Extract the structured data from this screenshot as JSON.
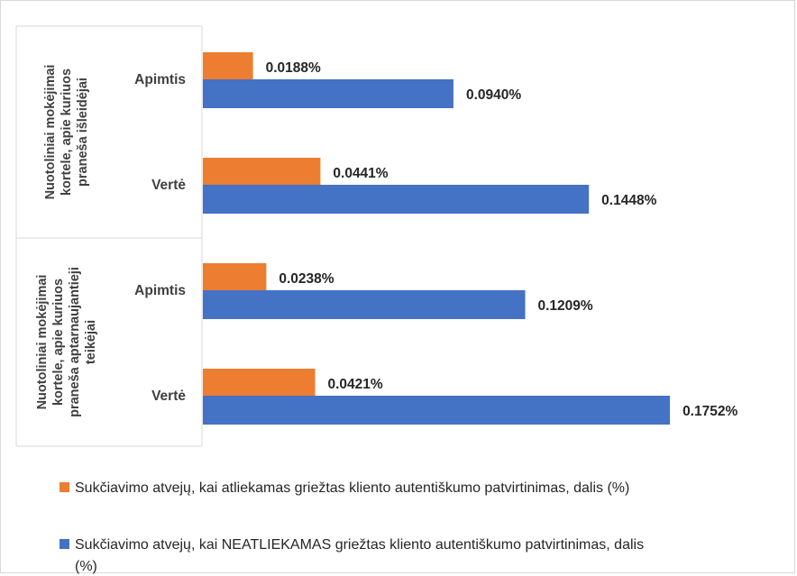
{
  "chart_data": {
    "type": "bar",
    "orientation": "horizontal",
    "groups": [
      {
        "label_lines": [
          "Nuotoliniai mokėjimai",
          "kortele, apie kuriuos",
          "praneša išleidėjai"
        ],
        "categories": [
          "Apimtis",
          "Vertė"
        ]
      },
      {
        "label_lines": [
          "Nuotoliniai mokėjimai",
          "kortele, apie kuriuos",
          "praneša aptarnaujantieji",
          "teikėjai"
        ],
        "categories": [
          "Apimtis",
          "Vertė"
        ]
      }
    ],
    "series": [
      {
        "name": "Sukčiavimo atvejų, kai atliekamas griežtas kliento autentiškumo patvirtinimas, dalis (%)",
        "color": "#ED7D31",
        "values": [
          0.0188,
          0.0441,
          0.0238,
          0.0421
        ],
        "labels": [
          "0.0188%",
          "0.0441%",
          "0.0238%",
          "0.0421%"
        ]
      },
      {
        "name": "Sukčiavimo atvejų, kai NEATLIEKAMAS griežtas kliento autentiškumo patvirtinimas, dalis (%)",
        "name_lines": [
          "Sukčiavimo atvejų, kai NEATLIEKAMAS griežtas kliento autentiškumo patvirtinimas, dalis",
          "(%)"
        ],
        "color": "#4472C4",
        "values": [
          0.094,
          0.1448,
          0.1209,
          0.1752
        ],
        "labels": [
          "0.0940%",
          "0.1448%",
          "0.1209%",
          "0.1752%"
        ]
      }
    ],
    "value_unit": "%",
    "xlim": [
      0,
      0.18
    ],
    "gridlines": false,
    "legend_position": "bottom"
  }
}
